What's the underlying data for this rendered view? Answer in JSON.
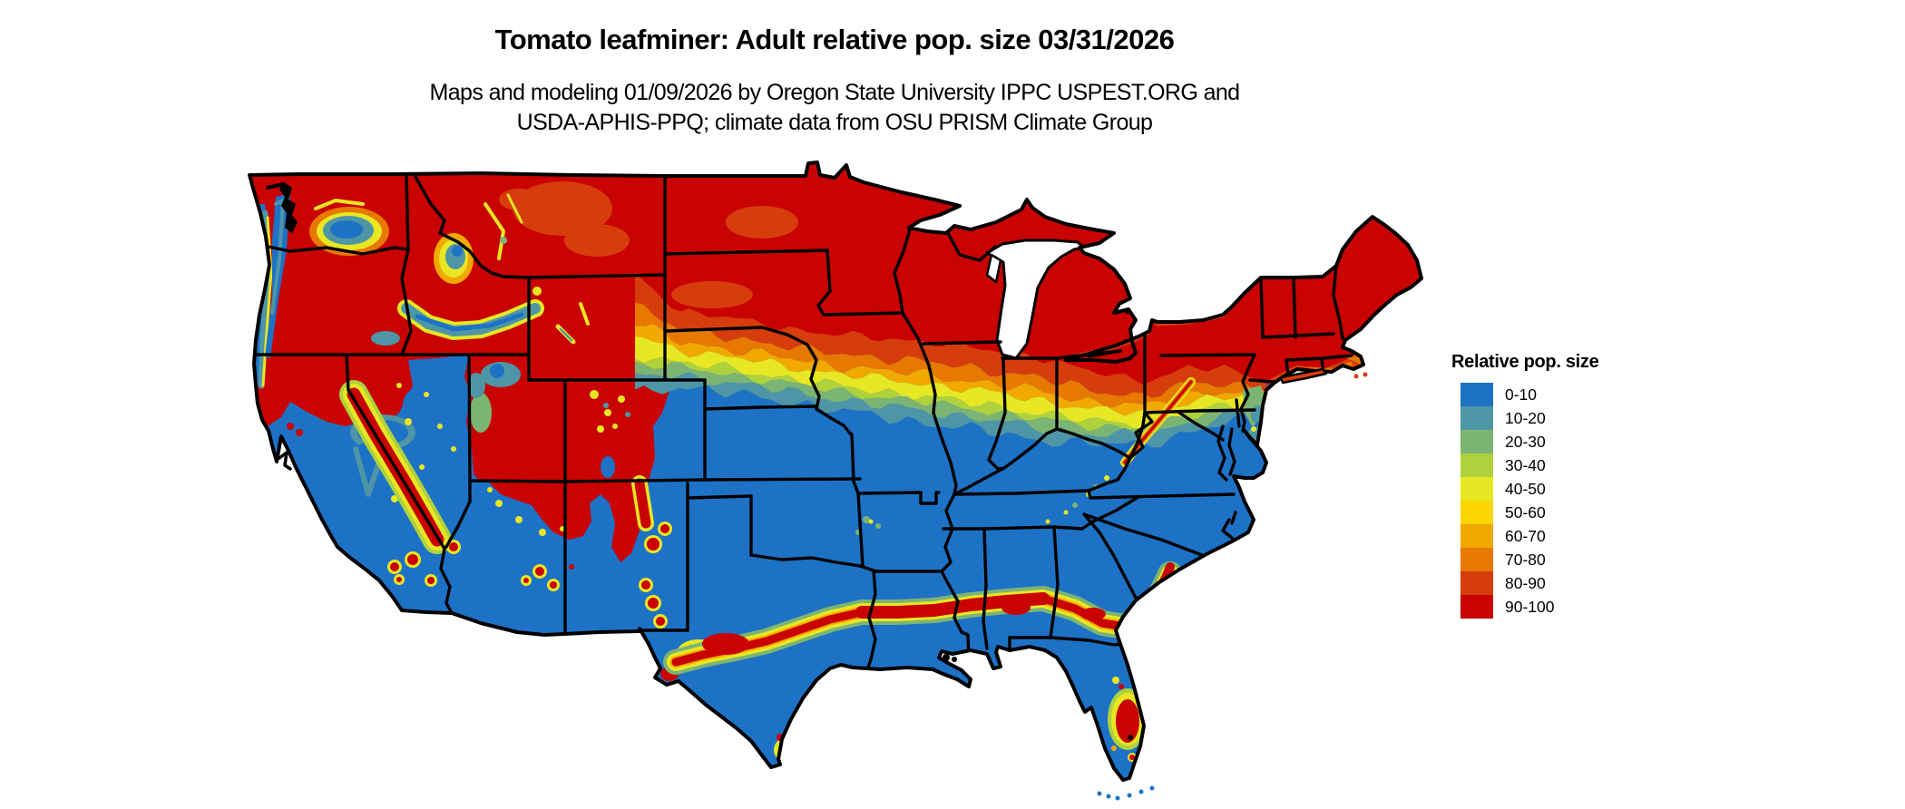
{
  "title": "Tomato leafminer: Adult relative pop. size 03/31/2026",
  "subtitle_line1": "Maps and modeling 01/09/2026 by Oregon State University IPPC USPEST.ORG and",
  "subtitle_line2": "USDA-APHIS-PPQ; climate data from OSU PRISM Climate Group",
  "legend": {
    "title": "Relative pop. size",
    "items": [
      {
        "label": "0-10",
        "color": "#1D72C6"
      },
      {
        "label": "10-20",
        "color": "#4E96A6"
      },
      {
        "label": "20-30",
        "color": "#7CB473"
      },
      {
        "label": "30-40",
        "color": "#AFD23C"
      },
      {
        "label": "40-50",
        "color": "#E7E723"
      },
      {
        "label": "50-60",
        "color": "#FBD500"
      },
      {
        "label": "60-70",
        "color": "#F1A900"
      },
      {
        "label": "70-80",
        "color": "#E77800"
      },
      {
        "label": "80-90",
        "color": "#D73D0C"
      },
      {
        "label": "90-100",
        "color": "#C90202"
      }
    ]
  },
  "map": {
    "date_shown": "03/31/2026",
    "border_color": "#000000",
    "water_color": "#ffffff"
  }
}
